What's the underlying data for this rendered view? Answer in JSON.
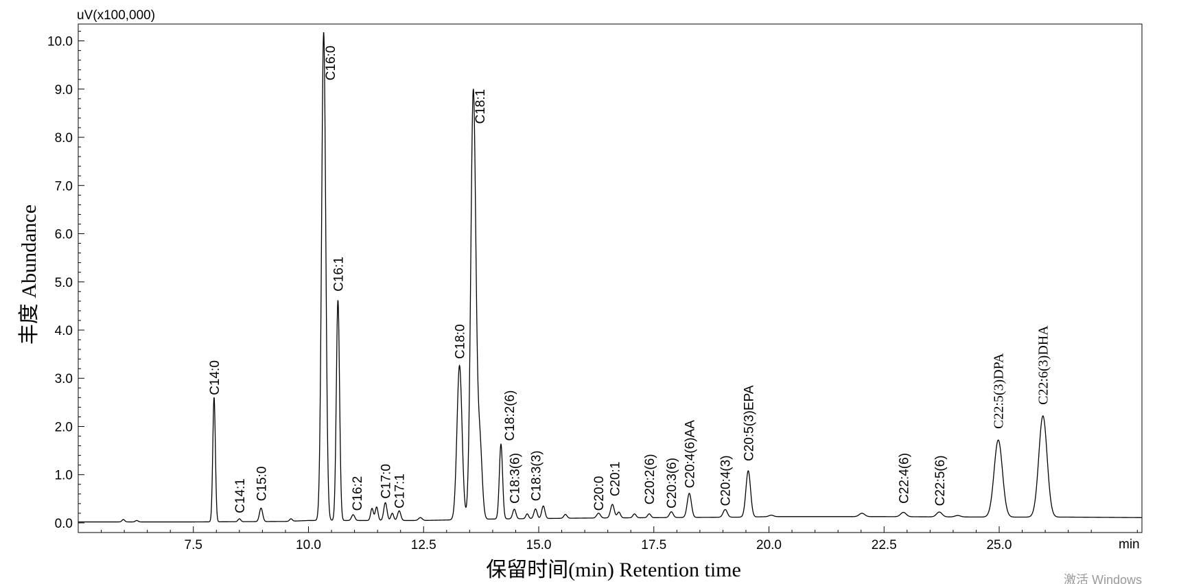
{
  "chart_data": {
    "type": "line",
    "title": "",
    "y_unit": "uV(x100,000)",
    "x_unit": "min",
    "xlabel": "保留时间(min) Retention time",
    "ylabel": "丰度 Abundance",
    "xlim": [
      5.0,
      28.1
    ],
    "ylim": [
      -0.2,
      10.35
    ],
    "x_ticks": [
      "7.5",
      "10.0",
      "12.5",
      "15.0",
      "17.5",
      "20.0",
      "22.5",
      "25.0"
    ],
    "y_ticks": [
      "0.0",
      "1.0",
      "2.0",
      "3.0",
      "4.0",
      "5.0",
      "6.0",
      "7.0",
      "8.0",
      "9.0",
      "10.0"
    ],
    "grid": false,
    "legend": "none",
    "series": [
      {
        "baseline": [
          [
            5.0,
            0.02
          ],
          [
            7.5,
            0.02
          ],
          [
            9.5,
            0.03
          ],
          [
            10.0,
            0.05
          ],
          [
            12.5,
            0.05
          ],
          [
            14.0,
            0.08
          ],
          [
            16.0,
            0.1
          ],
          [
            19.5,
            0.12
          ],
          [
            20.0,
            0.13
          ],
          [
            22.5,
            0.13
          ],
          [
            25.0,
            0.12
          ],
          [
            26.5,
            0.12
          ],
          [
            28.1,
            0.11
          ]
        ],
        "peaks": [
          {
            "rt": 5.98,
            "height": 0.05,
            "width": 0.03
          },
          {
            "rt": 6.27,
            "height": 0.03,
            "width": 0.03
          },
          {
            "rt": 7.95,
            "height": 2.58,
            "width": 0.028
          },
          {
            "rt": 8.5,
            "height": 0.06,
            "width": 0.03
          },
          {
            "rt": 8.97,
            "height": 0.28,
            "width": 0.035
          },
          {
            "rt": 9.62,
            "height": 0.05,
            "width": 0.03
          },
          {
            "rt": 10.33,
            "height": 10.13,
            "width": 0.045
          },
          {
            "rt": 10.64,
            "height": 4.57,
            "width": 0.035
          },
          {
            "rt": 10.97,
            "height": 0.12,
            "width": 0.035
          },
          {
            "rt": 11.38,
            "height": 0.25,
            "width": 0.03
          },
          {
            "rt": 11.48,
            "height": 0.28,
            "width": 0.03
          },
          {
            "rt": 11.67,
            "height": 0.37,
            "width": 0.035
          },
          {
            "rt": 11.82,
            "height": 0.15,
            "width": 0.03
          },
          {
            "rt": 11.97,
            "height": 0.2,
            "width": 0.035
          },
          {
            "rt": 12.43,
            "height": 0.06,
            "width": 0.04
          },
          {
            "rt": 13.28,
            "height": 3.2,
            "width": 0.055
          },
          {
            "rt": 13.58,
            "height": 8.9,
            "width": 0.055
          },
          {
            "rt": 13.72,
            "height": 1.6,
            "width": 0.05
          },
          {
            "rt": 14.18,
            "height": 1.55,
            "width": 0.035
          },
          {
            "rt": 14.47,
            "height": 0.2,
            "width": 0.035
          },
          {
            "rt": 14.75,
            "height": 0.1,
            "width": 0.03
          },
          {
            "rt": 14.93,
            "height": 0.2,
            "width": 0.035
          },
          {
            "rt": 15.1,
            "height": 0.26,
            "width": 0.035
          },
          {
            "rt": 15.58,
            "height": 0.08,
            "width": 0.035
          },
          {
            "rt": 16.3,
            "height": 0.1,
            "width": 0.04
          },
          {
            "rt": 16.6,
            "height": 0.28,
            "width": 0.04
          },
          {
            "rt": 16.74,
            "height": 0.12,
            "width": 0.035
          },
          {
            "rt": 17.08,
            "height": 0.08,
            "width": 0.035
          },
          {
            "rt": 17.4,
            "height": 0.08,
            "width": 0.035
          },
          {
            "rt": 17.88,
            "height": 0.12,
            "width": 0.04
          },
          {
            "rt": 18.27,
            "height": 0.5,
            "width": 0.045
          },
          {
            "rt": 19.05,
            "height": 0.16,
            "width": 0.045
          },
          {
            "rt": 19.55,
            "height": 0.96,
            "width": 0.05
          },
          {
            "rt": 20.05,
            "height": 0.03,
            "width": 0.05
          },
          {
            "rt": 22.02,
            "height": 0.07,
            "width": 0.06
          },
          {
            "rt": 22.92,
            "height": 0.09,
            "width": 0.06
          },
          {
            "rt": 23.7,
            "height": 0.1,
            "width": 0.06
          },
          {
            "rt": 24.1,
            "height": 0.03,
            "width": 0.06
          },
          {
            "rt": 24.98,
            "height": 1.6,
            "width": 0.09
          },
          {
            "rt": 25.95,
            "height": 2.1,
            "width": 0.09
          }
        ]
      }
    ],
    "peak_labels": [
      {
        "text": "C14:0",
        "rt": 7.95,
        "anchor": 2.65,
        "side": "above",
        "serif": false
      },
      {
        "text": "C14:1",
        "rt": 8.5,
        "anchor": 0.2,
        "side": "above",
        "serif": false
      },
      {
        "text": "C15:0",
        "rt": 8.97,
        "anchor": 0.45,
        "side": "above",
        "serif": false
      },
      {
        "text": "C16:0",
        "rt": 10.47,
        "anchor": 9.9,
        "side": "below",
        "serif": false
      },
      {
        "text": "C16:1",
        "rt": 10.64,
        "anchor": 4.8,
        "side": "above",
        "serif": false
      },
      {
        "text": "C16:2",
        "rt": 11.05,
        "anchor": 0.25,
        "side": "above",
        "serif": false
      },
      {
        "text": "C17:0",
        "rt": 11.67,
        "anchor": 0.5,
        "side": "above",
        "serif": false
      },
      {
        "text": "C17:1",
        "rt": 11.97,
        "anchor": 0.3,
        "side": "above",
        "serif": false
      },
      {
        "text": "C18:0",
        "rt": 13.28,
        "anchor": 3.4,
        "side": "above",
        "serif": false
      },
      {
        "text": "C18:1",
        "rt": 13.72,
        "anchor": 9.0,
        "side": "below",
        "serif": false
      },
      {
        "text": "C18:2(6)",
        "rt": 14.36,
        "anchor": 1.7,
        "side": "above",
        "serif": false
      },
      {
        "text": "C18:3(6)",
        "rt": 14.47,
        "anchor": 0.4,
        "side": "above",
        "serif": false
      },
      {
        "text": "C18:3(3)",
        "rt": 14.93,
        "anchor": 0.45,
        "side": "above",
        "serif": false
      },
      {
        "text": "C20:0",
        "rt": 16.3,
        "anchor": 0.25,
        "side": "above",
        "serif": false
      },
      {
        "text": "C20:1",
        "rt": 16.65,
        "anchor": 0.55,
        "side": "above",
        "serif": false
      },
      {
        "text": "C20:2(6)",
        "rt": 17.4,
        "anchor": 0.38,
        "side": "above",
        "serif": false
      },
      {
        "text": "C20:3(6)",
        "rt": 17.88,
        "anchor": 0.3,
        "side": "above",
        "serif": false
      },
      {
        "text": "C20:4(6)AA",
        "rt": 18.27,
        "anchor": 0.72,
        "side": "above",
        "serif": false
      },
      {
        "text": "C20:4(3)",
        "rt": 19.05,
        "anchor": 0.35,
        "side": "above",
        "serif": false
      },
      {
        "text": "C20:5(3)EPA",
        "rt": 19.55,
        "anchor": 1.28,
        "side": "above",
        "serif": false
      },
      {
        "text": "C22:4(6)",
        "rt": 22.92,
        "anchor": 0.4,
        "side": "above",
        "serif": false
      },
      {
        "text": "C22:5(6)",
        "rt": 23.7,
        "anchor": 0.35,
        "side": "above",
        "serif": false
      },
      {
        "text": "C22:5(3)DPA",
        "rt": 24.98,
        "anchor": 1.95,
        "side": "above",
        "serif": true
      },
      {
        "text": "C22:6(3)DHA",
        "rt": 25.95,
        "anchor": 2.45,
        "side": "above",
        "serif": true
      }
    ]
  },
  "watermark": "激活 Windows"
}
